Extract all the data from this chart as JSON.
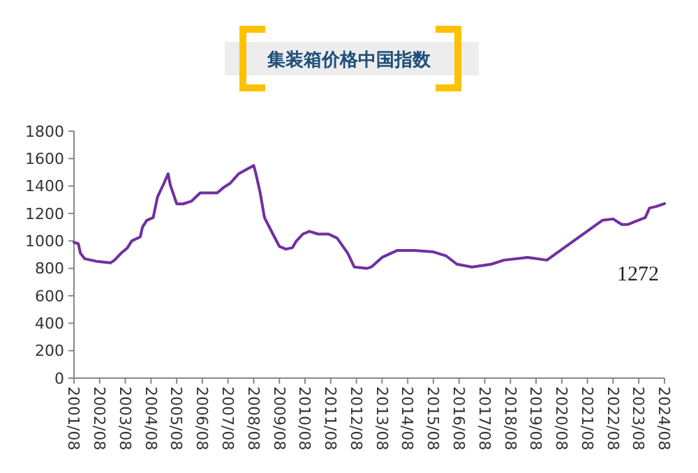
{
  "chart_data": {
    "type": "line",
    "title": "集装箱价格中国指数",
    "x": [
      "2001-08",
      "2001-10",
      "2001-11",
      "2002-01",
      "2002-04",
      "2002-07",
      "2003-01",
      "2003-03",
      "2003-06",
      "2003-09",
      "2003-11",
      "2004-03",
      "2004-04",
      "2004-06",
      "2004-09",
      "2004-11",
      "2005-02",
      "2005-04",
      "2005-05",
      "2005-08",
      "2005-11",
      "2006-03",
      "2006-07",
      "2007-03",
      "2007-06",
      "2007-09",
      "2008-01",
      "2008-08",
      "2008-09",
      "2008-11",
      "2009-01",
      "2009-05",
      "2009-08",
      "2009-11",
      "2010-02",
      "2010-04",
      "2010-07",
      "2010-10",
      "2011-02",
      "2011-07",
      "2011-11",
      "2012-04",
      "2012-07",
      "2013-01",
      "2013-03",
      "2013-08",
      "2014-03",
      "2014-11",
      "2015-08",
      "2016-02",
      "2016-07",
      "2017-02",
      "2017-11",
      "2018-05",
      "2019-04",
      "2020-01",
      "2022-03",
      "2022-08",
      "2022-12",
      "2023-03",
      "2023-06",
      "2023-11",
      "2024-01",
      "2024-04",
      "2024-08"
    ],
    "series": [
      {
        "color": "#7030a0",
        "values": [
          990,
          980,
          910,
          870,
          860,
          850,
          840,
          860,
          910,
          950,
          1000,
          1030,
          1100,
          1150,
          1170,
          1320,
          1420,
          1490,
          1410,
          1270,
          1270,
          1290,
          1350,
          1350,
          1390,
          1420,
          1490,
          1550,
          1490,
          1350,
          1170,
          1050,
          960,
          940,
          950,
          1000,
          1050,
          1070,
          1050,
          1050,
          1020,
          910,
          810,
          800,
          810,
          880,
          930,
          930,
          920,
          890,
          830,
          810,
          830,
          860,
          880,
          860,
          1150,
          1160,
          1120,
          1120,
          1140,
          1170,
          1240,
          1250,
          1272
        ]
      }
    ],
    "xlim": [
      "2001-08",
      "2024-08"
    ],
    "xticks": [
      {
        "value": "2001-08",
        "label": "2001/08"
      },
      {
        "value": "2002-08",
        "label": "2002/08"
      },
      {
        "value": "2003-08",
        "label": "2003/08"
      },
      {
        "value": "2004-08",
        "label": "2004/08"
      },
      {
        "value": "2005-08",
        "label": "2005/08"
      },
      {
        "value": "2006-08",
        "label": "2006/08"
      },
      {
        "value": "2007-08",
        "label": "2007/08"
      },
      {
        "value": "2008-08",
        "label": "2008/08"
      },
      {
        "value": "2009-08",
        "label": "2009/08"
      },
      {
        "value": "2010-08",
        "label": "2010/08"
      },
      {
        "value": "2011-08",
        "label": "2011/08"
      },
      {
        "value": "2012-08",
        "label": "2012/08"
      },
      {
        "value": "2013-08",
        "label": "2013/08"
      },
      {
        "value": "2014-08",
        "label": "2014/08"
      },
      {
        "value": "2015-08",
        "label": "2015/08"
      },
      {
        "value": "2016-08",
        "label": "2016/08"
      },
      {
        "value": "2017-08",
        "label": "2017/08"
      },
      {
        "value": "2018-08",
        "label": "2018/08"
      },
      {
        "value": "2019-08",
        "label": "2019/08"
      },
      {
        "value": "2020-08",
        "label": "2020/08"
      },
      {
        "value": "2021-08",
        "label": "2021/08"
      },
      {
        "value": "2022-08",
        "label": "2022/08"
      },
      {
        "value": "2023-08",
        "label": "2023/08"
      },
      {
        "value": "2024-08",
        "label": "2024/08"
      }
    ],
    "ylim": [
      0,
      1800
    ],
    "yticks": [
      0,
      200,
      400,
      600,
      800,
      1000,
      1200,
      1400,
      1600,
      1800
    ],
    "annotations": [
      {
        "text": "1272",
        "x": "2024-08",
        "y": 1272
      }
    ],
    "line_style": "solid"
  }
}
